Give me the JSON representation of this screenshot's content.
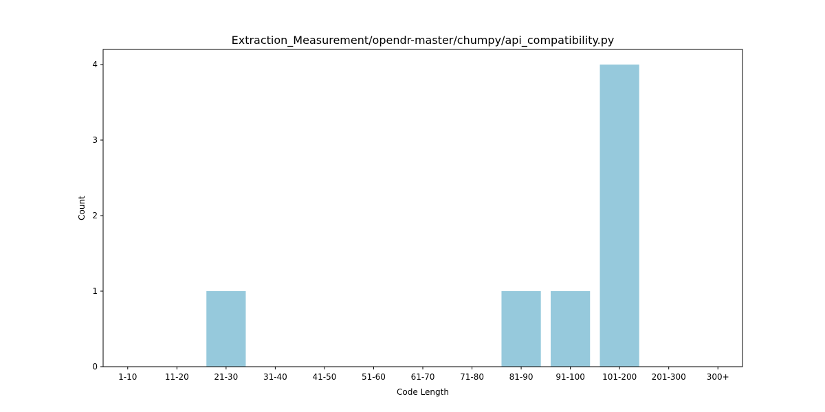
{
  "chart_data": {
    "type": "bar",
    "title": "Extraction_Measurement/opendr-master/chumpy/api_compatibility.py",
    "xlabel": "Code Length",
    "ylabel": "Count",
    "categories": [
      "1-10",
      "11-20",
      "21-30",
      "31-40",
      "41-50",
      "51-60",
      "61-70",
      "71-80",
      "81-90",
      "91-100",
      "101-200",
      "201-300",
      "300+"
    ],
    "values": [
      0,
      0,
      1,
      0,
      0,
      0,
      0,
      0,
      1,
      1,
      4,
      0,
      0
    ],
    "ylim": [
      0,
      4.2
    ],
    "yticks": [
      "0",
      "1",
      "2",
      "3",
      "4"
    ],
    "grid": false,
    "bar_color": "#96c9dc"
  }
}
